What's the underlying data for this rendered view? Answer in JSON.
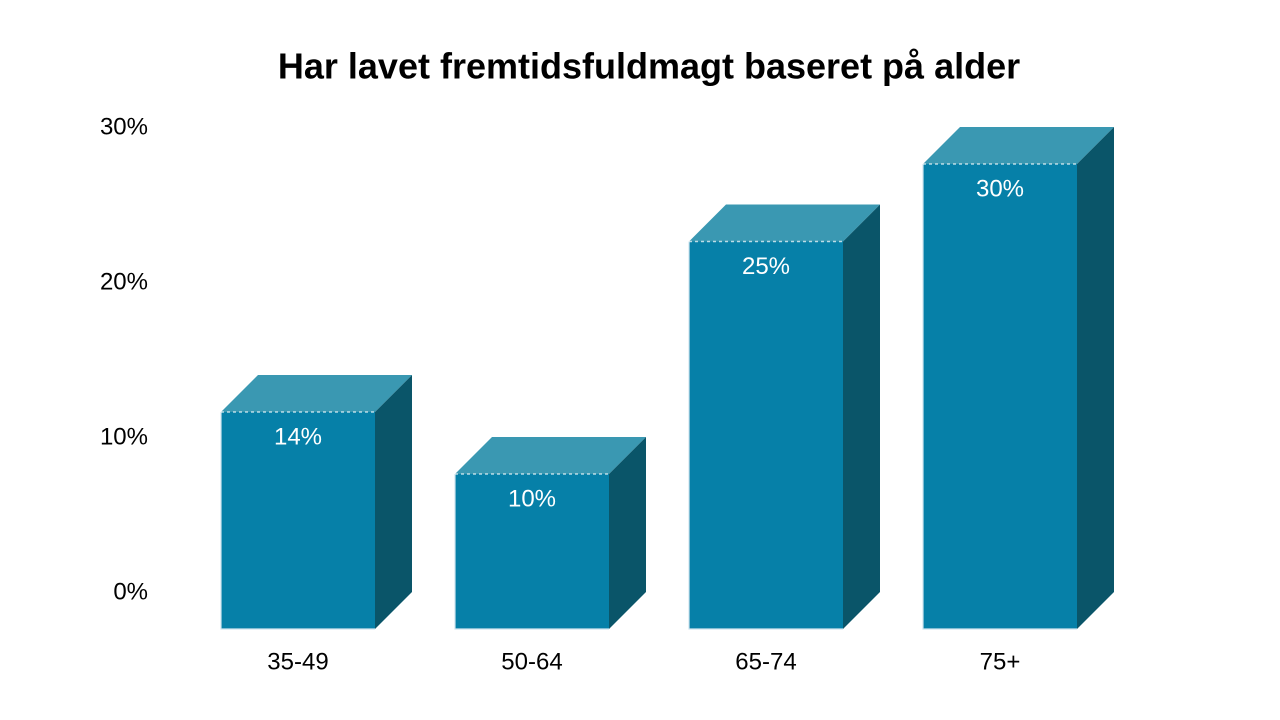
{
  "page": {
    "background": "#ffffff"
  },
  "chart_data": {
    "type": "bar",
    "style": "3d-column",
    "title": "Har lavet fremtidsfuldmagt baseret på alder",
    "categories": [
      "35-49",
      "50-64",
      "65-74",
      "75+"
    ],
    "values": [
      14,
      10,
      25,
      30
    ],
    "data_labels": [
      "14%",
      "10%",
      "25%",
      "30%"
    ],
    "series": [
      {
        "name": "Har lavet fremtidsfuldmagt",
        "values": [
          14,
          10,
          25,
          30
        ]
      }
    ],
    "yticks": [
      {
        "value": 0,
        "label": "0%"
      },
      {
        "value": 10,
        "label": "10%"
      },
      {
        "value": 20,
        "label": "20%"
      },
      {
        "value": 30,
        "label": "30%"
      }
    ],
    "ylim": [
      0,
      30
    ],
    "xlabel": "",
    "ylabel": "",
    "grid": false,
    "legend": "none",
    "colors": {
      "bar_front": "#0680a8",
      "bar_top": "#3a98b2",
      "bar_side": "#0a5569",
      "bar_edge_highlight": "#cfe4ef",
      "bar_top_edge_dotted": "rgba(255,255,255,0.7)",
      "data_label_text": "#ffffff",
      "axis_text": "#000000",
      "title_text": "#000000",
      "background": "#ffffff"
    }
  }
}
